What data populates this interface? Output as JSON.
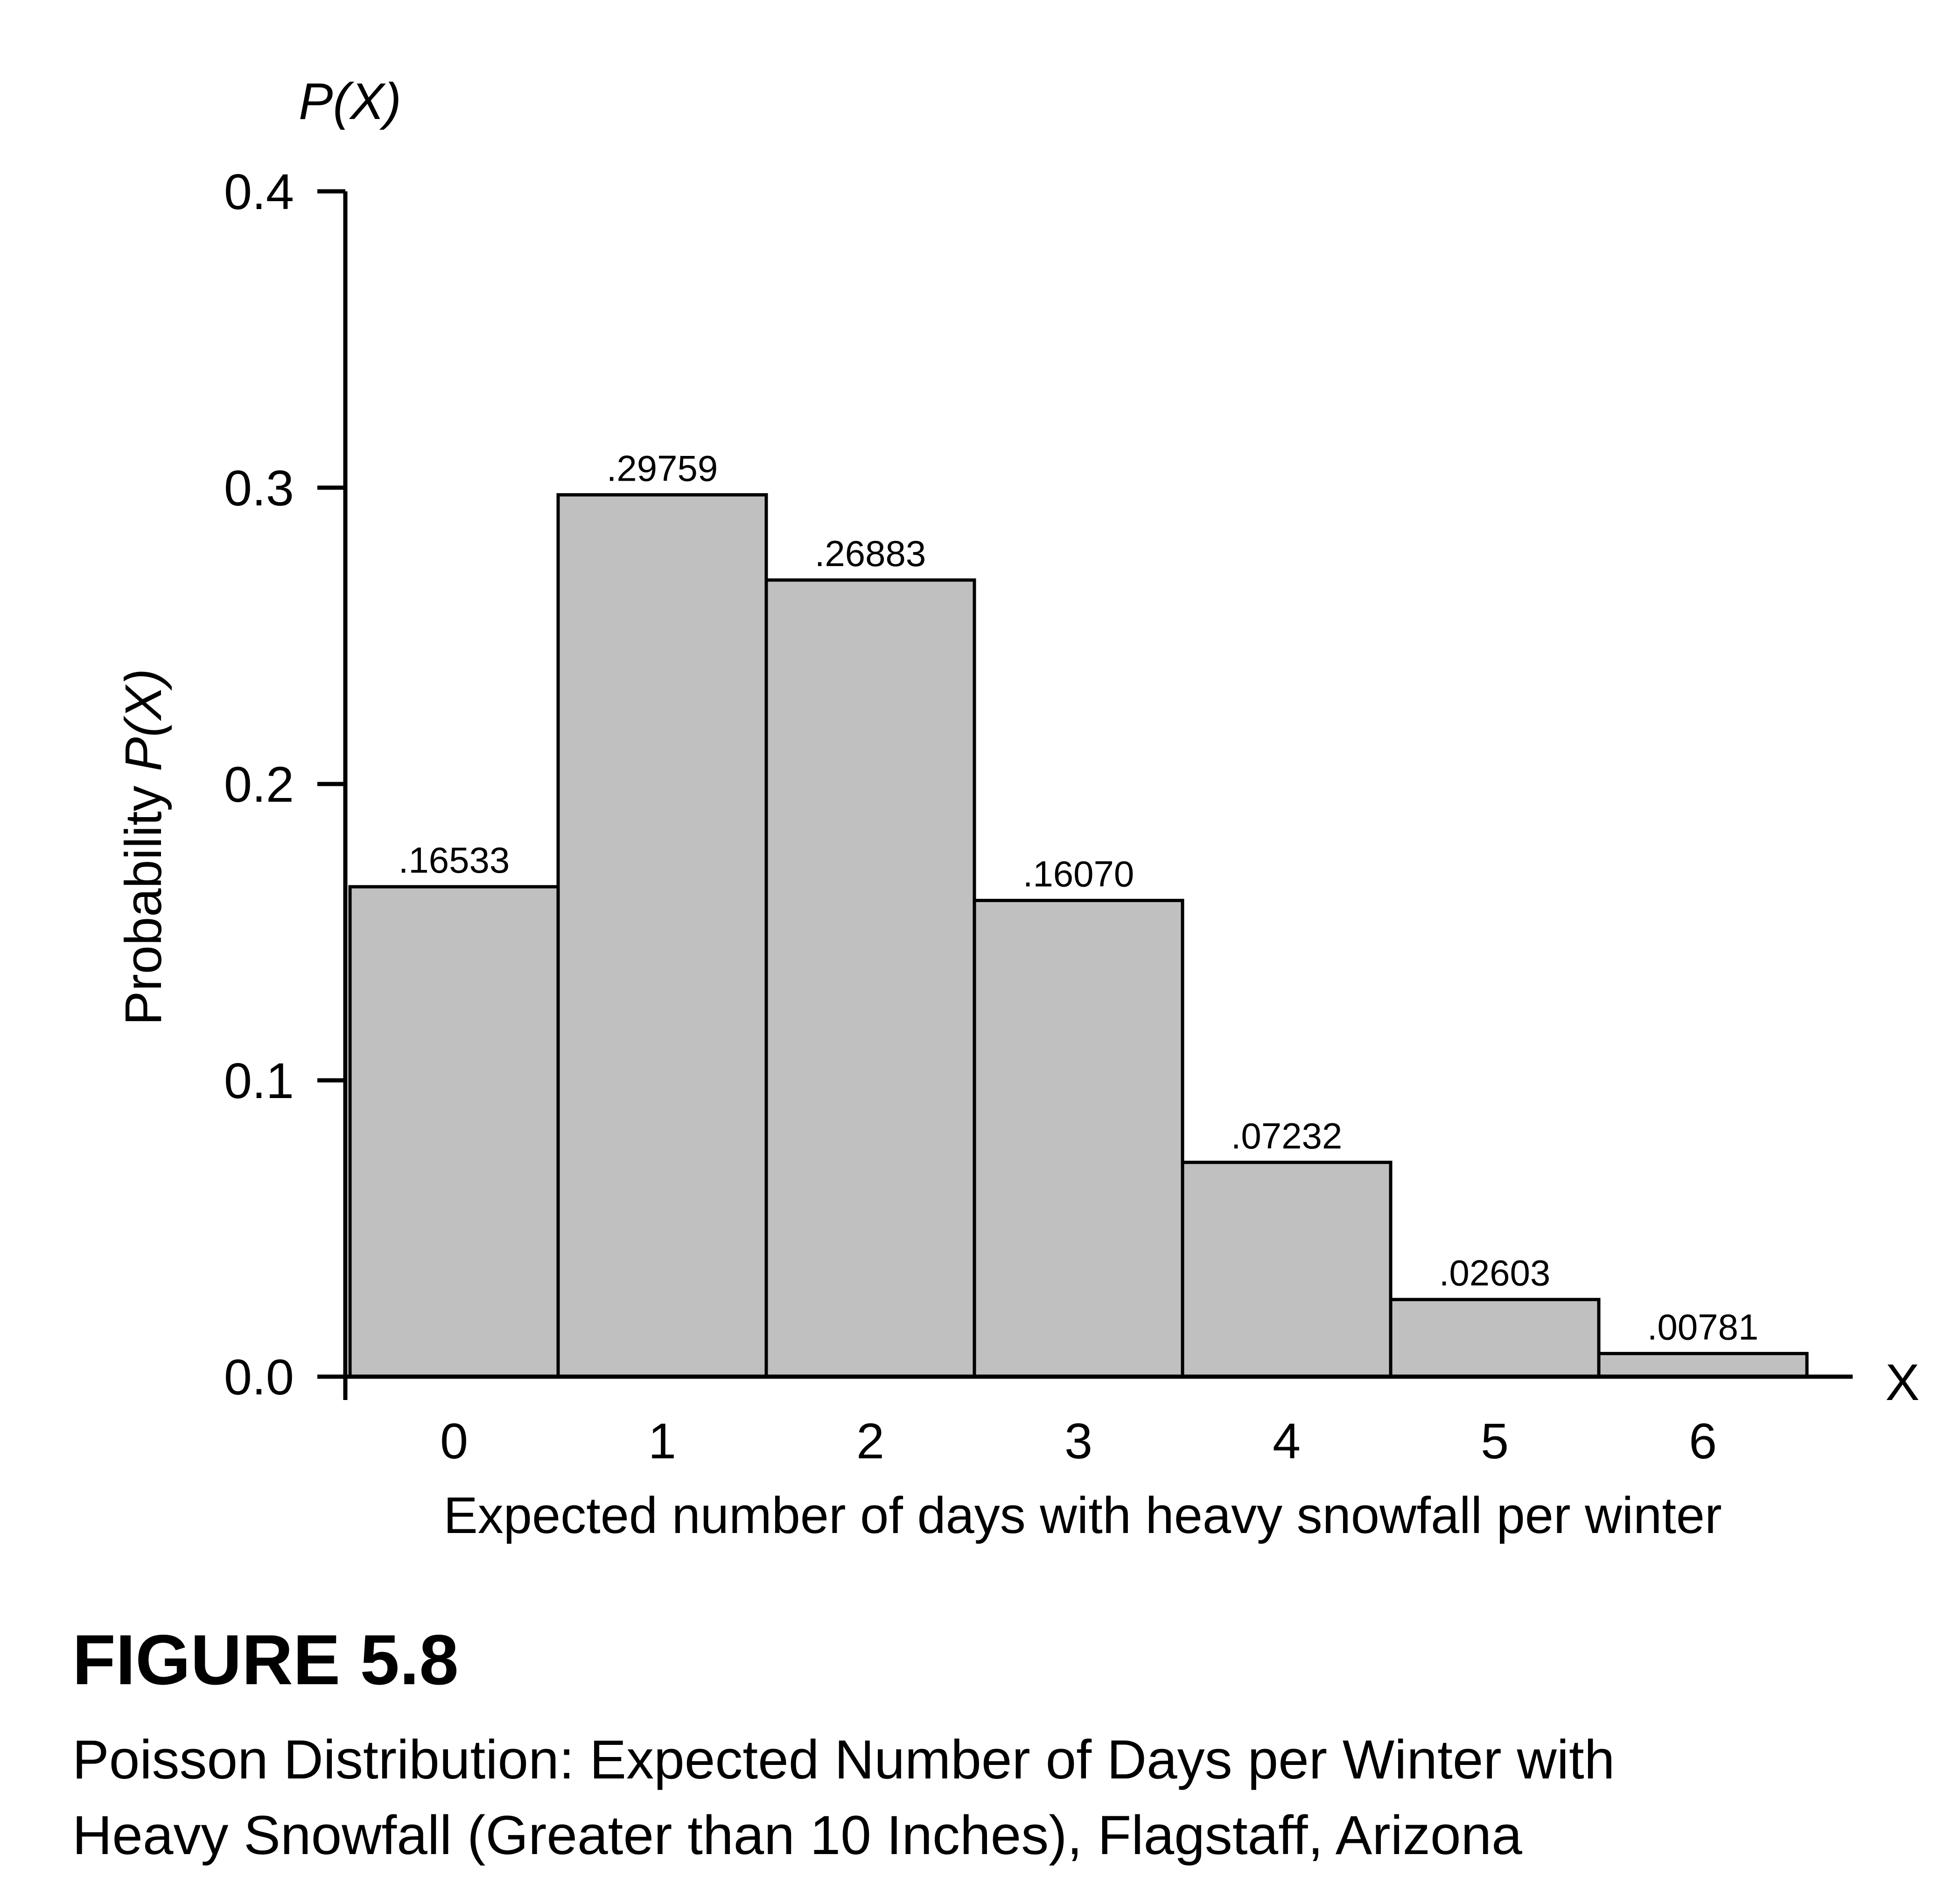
{
  "chart_data": {
    "type": "bar",
    "categories": [
      "0",
      "1",
      "2",
      "3",
      "4",
      "5",
      "6"
    ],
    "values": [
      0.16533,
      0.29759,
      0.26883,
      0.1607,
      0.07232,
      0.02603,
      0.00781
    ],
    "data_labels": [
      ".16533",
      ".29759",
      ".26883",
      ".16070",
      ".07232",
      ".02603",
      ".00781"
    ],
    "ylim": [
      0,
      0.4
    ],
    "yticks": [
      0.0,
      0.1,
      0.2,
      0.3,
      0.4
    ],
    "ytick_labels": [
      "0.0",
      "0.1",
      "0.2",
      "0.3",
      "0.4"
    ],
    "y_axis_end_label": "P(X)",
    "ylabel_prefix": "Probability ",
    "ylabel_var": "P(X)",
    "x_axis_end_label": "X",
    "xlabel": "Expected number of days with heavy snowfall per winter",
    "bar_fill": "#c0c0c0",
    "bar_stroke": "#000000",
    "grid": false,
    "legend": "none"
  },
  "figure": {
    "number": "FIGURE 5.8",
    "caption_line1": "Poisson Distribution: Expected Number of Days per Winter with",
    "caption_line2": "Heavy Snowfall (Greater than 10 Inches), Flagstaff, Arizona"
  }
}
